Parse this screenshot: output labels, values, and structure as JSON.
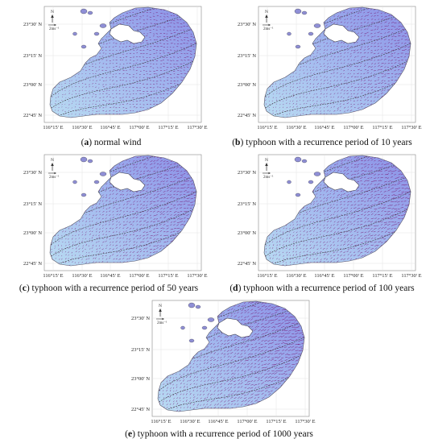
{
  "panels": [
    {
      "id": "a",
      "letter": "a",
      "caption": "normal wind"
    },
    {
      "id": "b",
      "letter": "b",
      "caption": "typhoon with a recurrence period of 10 years"
    },
    {
      "id": "c",
      "letter": "c",
      "caption": "typhoon with a recurrence period of 50 years"
    },
    {
      "id": "d",
      "letter": "d",
      "caption": "typhoon with a recurrence period of 100 years"
    },
    {
      "id": "e",
      "letter": "e",
      "caption": "typhoon with a recurrence period of 1000 years"
    }
  ],
  "axes": {
    "x_ticks": [
      "116°15′ E",
      "116°30′ E",
      "116°45′ E",
      "117°00′ E",
      "117°15′ E",
      "117°30′ E"
    ],
    "y_ticks": [
      "23°30′ N",
      "23°15′ N",
      "23°00′ N",
      "22°45′ N"
    ]
  },
  "north_label": "N",
  "scale_label": "2ms⁻¹",
  "colors": {
    "sea_light": "#b9dcf2",
    "sea_dark": "#8b8fe6",
    "land": "#ffffff",
    "arrow": "#7a1f7a",
    "contour": "#333333"
  }
}
